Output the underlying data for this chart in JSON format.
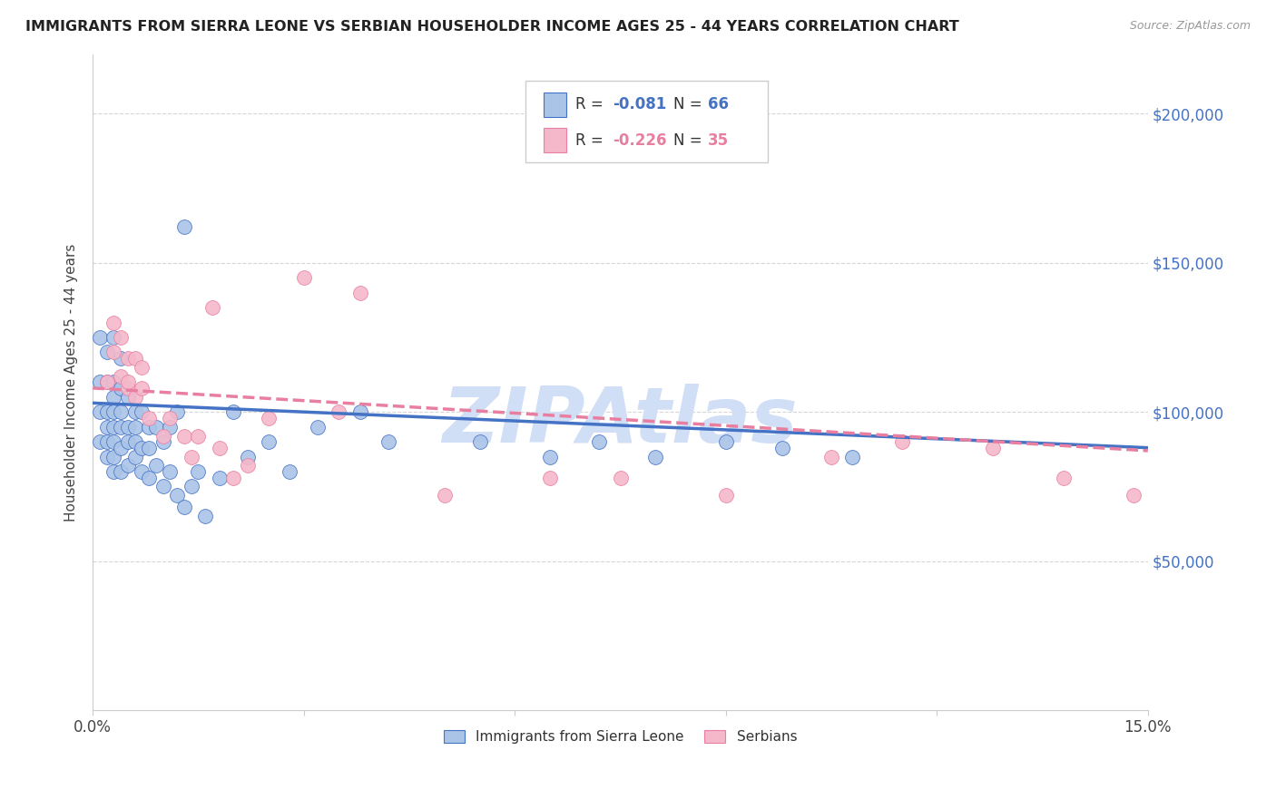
{
  "title": "IMMIGRANTS FROM SIERRA LEONE VS SERBIAN HOUSEHOLDER INCOME AGES 25 - 44 YEARS CORRELATION CHART",
  "source": "Source: ZipAtlas.com",
  "ylabel": "Householder Income Ages 25 - 44 years",
  "xlim": [
    0,
    0.15
  ],
  "ylim": [
    0,
    220000
  ],
  "ytick_positions": [
    50000,
    100000,
    150000,
    200000
  ],
  "ytick_labels": [
    "$50,000",
    "$100,000",
    "$150,000",
    "$200,000"
  ],
  "legend_label1": "Immigrants from Sierra Leone",
  "legend_label2": "Serbians",
  "r1": "-0.081",
  "n1": "66",
  "r2": "-0.226",
  "n2": "35",
  "color1": "#aac4e8",
  "color2": "#f4b8ca",
  "trendline1_color": "#4472c4",
  "trendline2_color": "#e87fa0",
  "watermark": "ZIPAtlas",
  "watermark_color": "#d0dff5",
  "sl_x": [
    0.001,
    0.001,
    0.001,
    0.001,
    0.002,
    0.002,
    0.002,
    0.002,
    0.002,
    0.002,
    0.003,
    0.003,
    0.003,
    0.003,
    0.003,
    0.003,
    0.003,
    0.003,
    0.004,
    0.004,
    0.004,
    0.004,
    0.004,
    0.004,
    0.005,
    0.005,
    0.005,
    0.005,
    0.006,
    0.006,
    0.006,
    0.006,
    0.007,
    0.007,
    0.007,
    0.008,
    0.008,
    0.008,
    0.009,
    0.009,
    0.01,
    0.01,
    0.011,
    0.011,
    0.012,
    0.012,
    0.013,
    0.014,
    0.015,
    0.016,
    0.018,
    0.02,
    0.022,
    0.025,
    0.028,
    0.032,
    0.038,
    0.042,
    0.055,
    0.065,
    0.072,
    0.08,
    0.09,
    0.098,
    0.108
  ],
  "sl_y": [
    90000,
    100000,
    110000,
    125000,
    85000,
    90000,
    95000,
    100000,
    110000,
    120000,
    80000,
    85000,
    90000,
    95000,
    100000,
    105000,
    110000,
    125000,
    80000,
    88000,
    95000,
    100000,
    108000,
    118000,
    82000,
    90000,
    95000,
    105000,
    85000,
    90000,
    95000,
    100000,
    80000,
    88000,
    100000,
    78000,
    88000,
    95000,
    82000,
    95000,
    75000,
    90000,
    80000,
    95000,
    72000,
    100000,
    68000,
    75000,
    80000,
    65000,
    78000,
    100000,
    85000,
    90000,
    80000,
    95000,
    100000,
    90000,
    90000,
    85000,
    90000,
    85000,
    90000,
    88000,
    85000
  ],
  "sl_outlier_x": [
    0.013
  ],
  "sl_outlier_y": [
    162000
  ],
  "serb_x": [
    0.002,
    0.003,
    0.003,
    0.004,
    0.004,
    0.005,
    0.005,
    0.005,
    0.006,
    0.006,
    0.007,
    0.007,
    0.008,
    0.01,
    0.011,
    0.013,
    0.014,
    0.015,
    0.017,
    0.018,
    0.02,
    0.022,
    0.025,
    0.03,
    0.035,
    0.038,
    0.05,
    0.065,
    0.075,
    0.09,
    0.105,
    0.115,
    0.128,
    0.138,
    0.148
  ],
  "serb_y": [
    110000,
    120000,
    130000,
    112000,
    125000,
    108000,
    118000,
    110000,
    105000,
    118000,
    108000,
    115000,
    98000,
    92000,
    98000,
    92000,
    85000,
    92000,
    135000,
    88000,
    78000,
    82000,
    98000,
    145000,
    100000,
    140000,
    72000,
    78000,
    78000,
    72000,
    85000,
    90000,
    88000,
    78000,
    72000
  ],
  "trendline1_x0": 0.0,
  "trendline1_y0": 103000,
  "trendline1_x1": 0.15,
  "trendline1_y1": 88000,
  "trendline2_x0": 0.0,
  "trendline2_y0": 108000,
  "trendline2_x1": 0.15,
  "trendline2_y1": 87000
}
